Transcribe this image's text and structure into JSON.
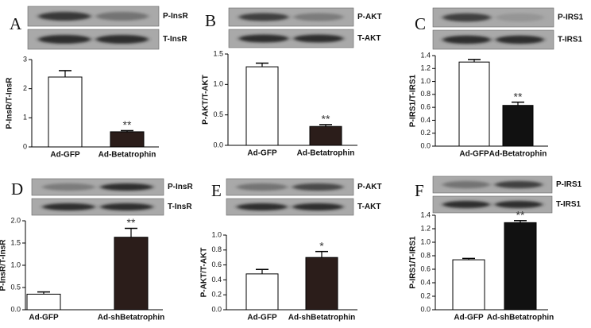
{
  "chart_data": [
    {
      "type": "bar",
      "panel": "A",
      "blot_labels": [
        "P-InsR",
        "T-InsR"
      ],
      "ylabel": "P-InsR/T-InsR",
      "categories": [
        "Ad-GFP",
        "Ad-Betatrophin"
      ],
      "values": [
        2.4,
        0.52
      ],
      "errors": [
        0.22,
        0.04
      ],
      "colors": [
        "#ffffff",
        "#2b1d1a"
      ],
      "annotations": [
        null,
        "**"
      ],
      "ylim": [
        0,
        3
      ],
      "yticks": [
        0,
        1,
        2,
        3
      ]
    },
    {
      "type": "bar",
      "panel": "B",
      "blot_labels": [
        "P-AKT",
        "T-AKT"
      ],
      "ylabel": "P-AKT/T-AKT",
      "categories": [
        "Ad-GFP",
        "Ad-Betatrophin"
      ],
      "values": [
        1.29,
        0.31
      ],
      "errors": [
        0.06,
        0.03
      ],
      "colors": [
        "#ffffff",
        "#2b1d1a"
      ],
      "annotations": [
        null,
        "**"
      ],
      "ylim": [
        0,
        1.5
      ],
      "yticks": [
        {
          "value": 0,
          "label": "0.0"
        },
        0.5,
        {
          "value": 1,
          "label": "1.0"
        },
        1.5
      ]
    },
    {
      "type": "bar",
      "panel": "C",
      "blot_labels": [
        "P-IRS1",
        "T-IRS1"
      ],
      "ylabel": "P-IRS1/T-IRS1",
      "categories": [
        "Ad-GFP",
        "Ad-Betatrophin"
      ],
      "values": [
        1.3,
        0.63
      ],
      "errors": [
        0.04,
        0.05
      ],
      "colors": [
        "#ffffff",
        "#111111"
      ],
      "annotations": [
        null,
        "**"
      ],
      "ylim": [
        0,
        1.4
      ],
      "yticks": [
        {
          "value": 0,
          "label": "0.0"
        },
        0.2,
        0.4,
        0.6,
        0.8,
        {
          "value": 1,
          "label": "1.0"
        },
        1.2,
        1.4
      ]
    },
    {
      "type": "bar",
      "panel": "D",
      "blot_labels": [
        "P-InsR",
        "T-InsR"
      ],
      "ylabel": "P-InsR/T-InsR",
      "categories": [
        "Ad-GFP",
        "Ad-shBetatrophin"
      ],
      "values": [
        0.35,
        1.63
      ],
      "errors": [
        0.05,
        0.2
      ],
      "colors": [
        "#ffffff",
        "#2b1d1a"
      ],
      "annotations": [
        null,
        "**"
      ],
      "ylim": [
        0,
        2
      ],
      "yticks": [
        {
          "value": 0,
          "label": "0.0"
        },
        0.5,
        {
          "value": 1,
          "label": "1.0"
        },
        1.5,
        {
          "value": 2,
          "label": "2.0"
        }
      ]
    },
    {
      "type": "bar",
      "panel": "E",
      "blot_labels": [
        "P-AKT",
        "T-AKT"
      ],
      "ylabel": "P-AKT/T-AKT",
      "categories": [
        "Ad-GFP",
        "Ad-shBetatrophin"
      ],
      "values": [
        0.48,
        0.7
      ],
      "errors": [
        0.06,
        0.08
      ],
      "colors": [
        "#ffffff",
        "#2b1d1a"
      ],
      "annotations": [
        null,
        "*"
      ],
      "ylim": [
        0,
        1
      ],
      "yticks": [
        {
          "value": 0,
          "label": "0.0"
        },
        0.2,
        0.4,
        0.6,
        0.8,
        {
          "value": 1,
          "label": "1.0"
        }
      ]
    },
    {
      "type": "bar",
      "panel": "F",
      "blot_labels": [
        "P-IRS1",
        "T-IRS1"
      ],
      "ylabel": "P-IRS1/T-IRS1",
      "categories": [
        "Ad-GFP",
        "Ad-shBetatrophin"
      ],
      "values": [
        0.74,
        1.29
      ],
      "errors": [
        0.02,
        0.03
      ],
      "colors": [
        "#ffffff",
        "#111111"
      ],
      "annotations": [
        null,
        "**"
      ],
      "ylim": [
        0,
        1.4
      ],
      "yticks": [
        {
          "value": 0,
          "label": "0.0"
        },
        0.2,
        0.4,
        0.6,
        0.8,
        {
          "value": 1,
          "label": "1.0"
        },
        1.2,
        1.4
      ]
    }
  ]
}
